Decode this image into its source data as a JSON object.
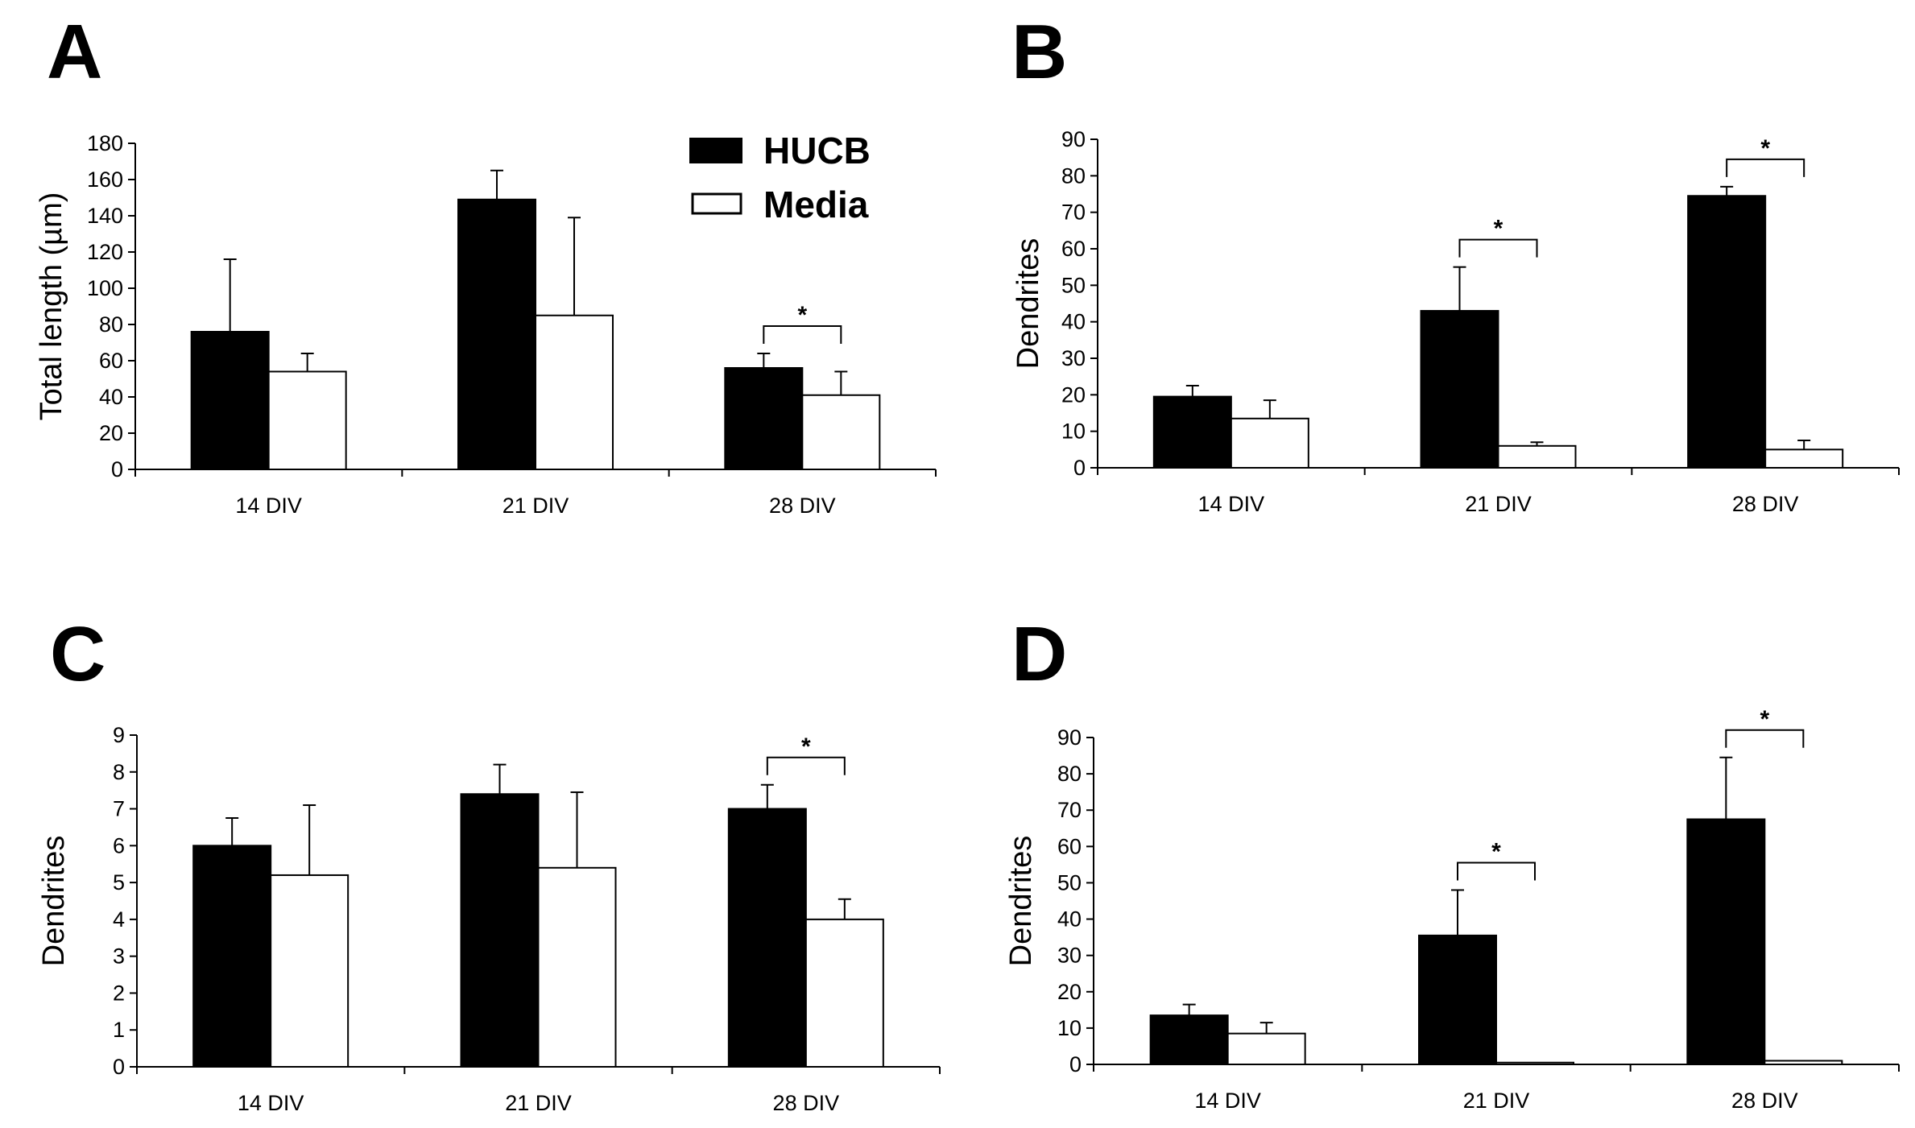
{
  "legend": [
    {
      "name": "HUCB",
      "color": "#000000"
    },
    {
      "name": "Media",
      "color": "#ffffff"
    }
  ],
  "chart_data": [
    {
      "panel": "A",
      "type": "bar",
      "categories": [
        "14 DIV",
        "21 DIV",
        "28 DIV"
      ],
      "ylabel": "Total length (µm)",
      "ylim": [
        0,
        180
      ],
      "yticks": [
        0,
        20,
        40,
        60,
        80,
        100,
        120,
        140,
        160,
        180
      ],
      "series": [
        {
          "name": "HUCB",
          "color": "#000000",
          "values": [
            76,
            149,
            56
          ],
          "errors": [
            40,
            16,
            8
          ]
        },
        {
          "name": "Media",
          "color": "#ffffff",
          "values": [
            54,
            85,
            41
          ],
          "errors": [
            10,
            54,
            13
          ]
        }
      ],
      "significance": [
        {
          "category": "28 DIV",
          "label": "*"
        }
      ],
      "legend_position": "top-right"
    },
    {
      "panel": "B",
      "type": "bar",
      "categories": [
        "14 DIV",
        "21 DIV",
        "28 DIV"
      ],
      "ylabel": "Dendrites",
      "ylim": [
        0,
        90
      ],
      "yticks": [
        0,
        10,
        20,
        30,
        40,
        50,
        60,
        70,
        80,
        90
      ],
      "series": [
        {
          "name": "HUCB",
          "color": "#000000",
          "values": [
            19.5,
            43,
            74.5
          ],
          "errors": [
            3,
            12,
            2.5
          ]
        },
        {
          "name": "Media",
          "color": "#ffffff",
          "values": [
            13.5,
            6,
            5
          ],
          "errors": [
            5,
            1,
            2.5
          ]
        }
      ],
      "significance": [
        {
          "category": "21 DIV",
          "label": "*"
        },
        {
          "category": "28 DIV",
          "label": "*"
        }
      ]
    },
    {
      "panel": "C",
      "type": "bar",
      "categories": [
        "14 DIV",
        "21 DIV",
        "28 DIV"
      ],
      "ylabel": "Dendrites",
      "ylim": [
        0,
        9
      ],
      "yticks": [
        0,
        1,
        2,
        3,
        4,
        5,
        6,
        7,
        8,
        9
      ],
      "series": [
        {
          "name": "HUCB",
          "color": "#000000",
          "values": [
            6.0,
            7.4,
            7.0
          ],
          "errors": [
            0.75,
            0.8,
            0.65
          ]
        },
        {
          "name": "Media",
          "color": "#ffffff",
          "values": [
            5.2,
            5.4,
            4.0
          ],
          "errors": [
            1.9,
            2.05,
            0.55
          ]
        }
      ],
      "significance": [
        {
          "category": "28 DIV",
          "label": "*"
        }
      ]
    },
    {
      "panel": "D",
      "type": "bar",
      "categories": [
        "14 DIV",
        "21 DIV",
        "28 DIV"
      ],
      "ylabel": "Dendrites",
      "ylim": [
        0,
        90
      ],
      "yticks": [
        0,
        10,
        20,
        30,
        40,
        50,
        60,
        70,
        80,
        90
      ],
      "series": [
        {
          "name": "HUCB",
          "color": "#000000",
          "values": [
            13.5,
            35.5,
            67.5
          ],
          "errors": [
            3,
            12.5,
            17
          ]
        },
        {
          "name": "Media",
          "color": "#ffffff",
          "values": [
            8.5,
            0.5,
            1
          ],
          "errors": [
            3,
            0,
            0
          ]
        }
      ],
      "significance": [
        {
          "category": "21 DIV",
          "label": "*"
        },
        {
          "category": "28 DIV",
          "label": "*"
        }
      ]
    }
  ]
}
